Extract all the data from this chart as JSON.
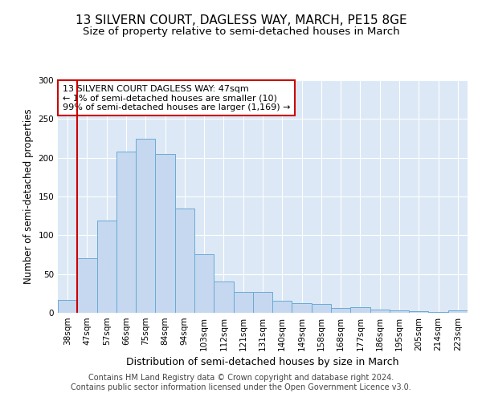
{
  "title1": "13 SILVERN COURT, DAGLESS WAY, MARCH, PE15 8GE",
  "title2": "Size of property relative to semi-detached houses in March",
  "xlabel": "Distribution of semi-detached houses by size in March",
  "ylabel": "Number of semi-detached properties",
  "categories": [
    "38sqm",
    "47sqm",
    "57sqm",
    "66sqm",
    "75sqm",
    "84sqm",
    "94sqm",
    "103sqm",
    "112sqm",
    "121sqm",
    "131sqm",
    "140sqm",
    "149sqm",
    "158sqm",
    "168sqm",
    "177sqm",
    "186sqm",
    "195sqm",
    "205sqm",
    "214sqm",
    "223sqm"
  ],
  "values": [
    17,
    70,
    119,
    208,
    224,
    205,
    134,
    76,
    40,
    27,
    27,
    16,
    12,
    11,
    6,
    7,
    4,
    3,
    2,
    1,
    3
  ],
  "bar_color": "#c5d8f0",
  "bar_edge_color": "#6aaad4",
  "vline_color": "#cc0000",
  "ylim": [
    0,
    300
  ],
  "yticks": [
    0,
    50,
    100,
    150,
    200,
    250,
    300
  ],
  "annotation_lines": [
    "13 SILVERN COURT DAGLESS WAY: 47sqm",
    "← 1% of semi-detached houses are smaller (10)",
    "99% of semi-detached houses are larger (1,169) →"
  ],
  "annotation_box_color": "#ffffff",
  "annotation_box_edge_color": "#cc0000",
  "footer1": "Contains HM Land Registry data © Crown copyright and database right 2024.",
  "footer2": "Contains public sector information licensed under the Open Government Licence v3.0.",
  "fig_background_color": "#ffffff",
  "plot_background_color": "#dce8f5",
  "grid_color": "#ffffff",
  "title1_fontsize": 11,
  "title2_fontsize": 9.5,
  "xlabel_fontsize": 9,
  "ylabel_fontsize": 8.5,
  "tick_fontsize": 7.5,
  "annotation_fontsize": 8,
  "footer_fontsize": 7
}
